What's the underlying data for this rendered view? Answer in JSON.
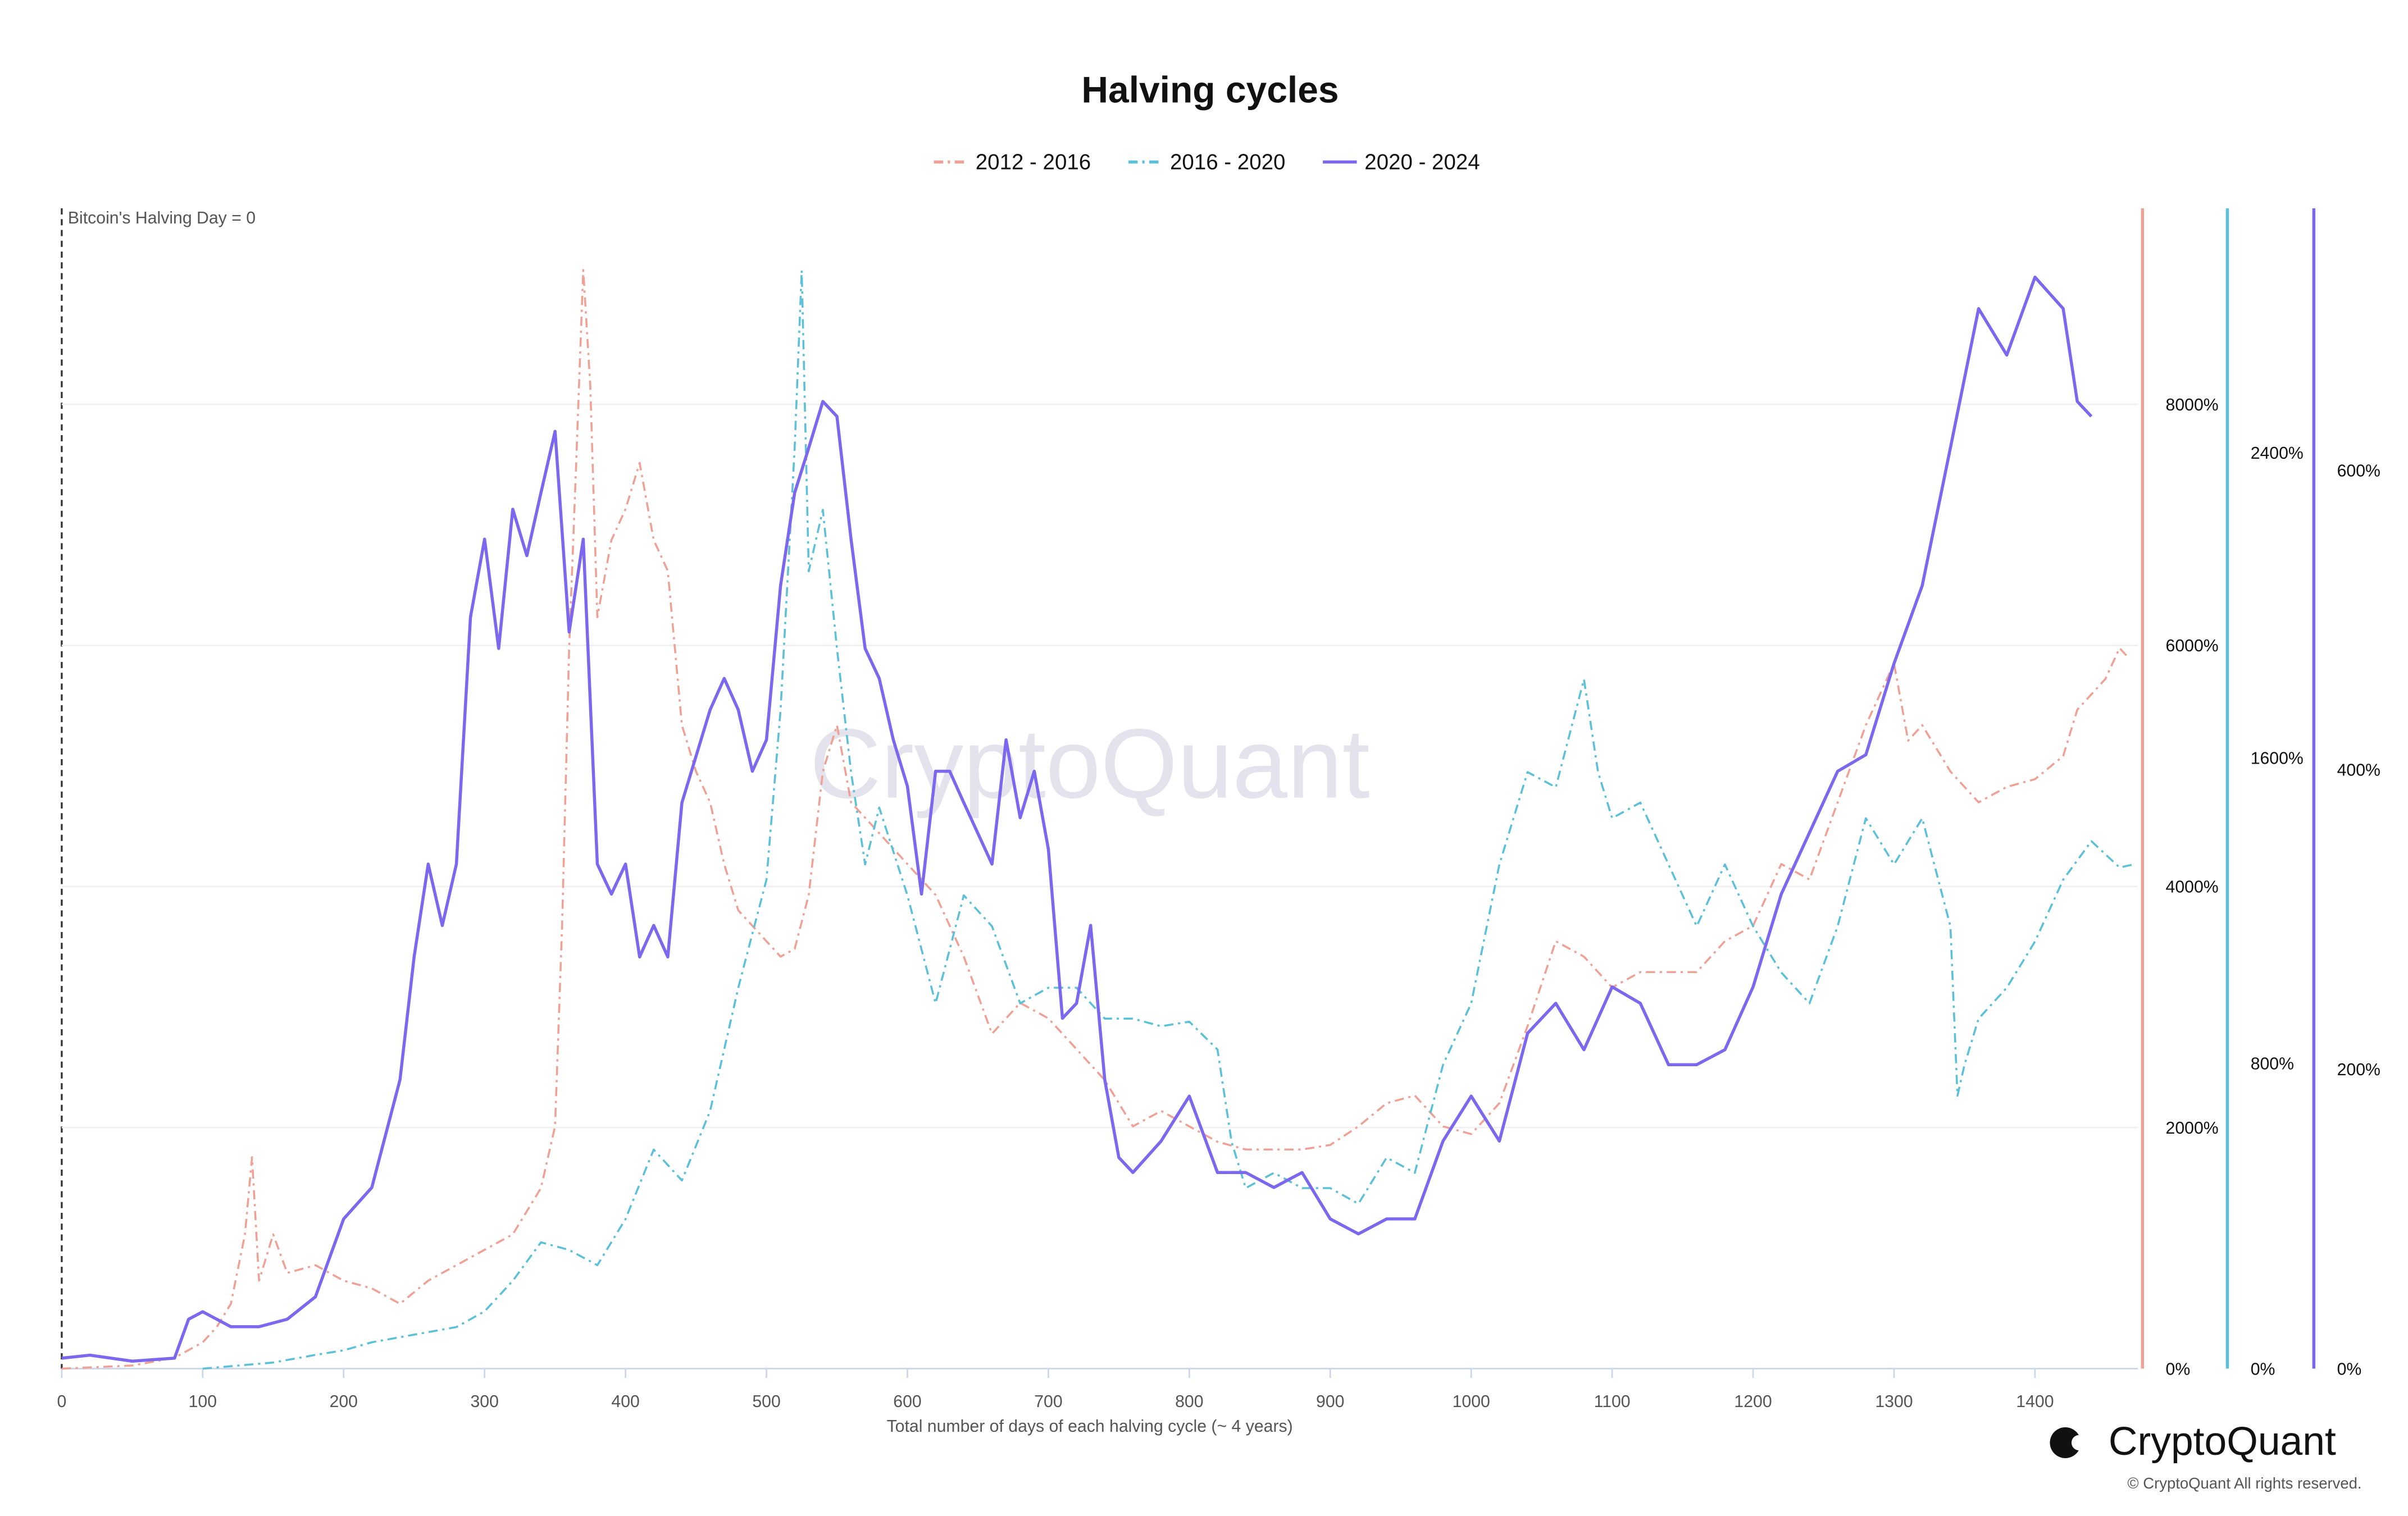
{
  "chart_data": {
    "type": "line",
    "title": "Halving cycles",
    "annotation": "Bitcoin's Halving Day = 0",
    "x_label": "Total number of days of each halving cycle (~ 4 years)",
    "watermark": "CryptoQuant",
    "logo": "CryptoQuant",
    "copyright": "© CryptoQuant All rights reserved.",
    "xlim": [
      0,
      1473
    ],
    "xticks": [
      0,
      100,
      200,
      300,
      400,
      500,
      600,
      700,
      800,
      900,
      1000,
      1100,
      1200,
      1300,
      1400
    ],
    "ylim": [
      0,
      9626
    ],
    "yticks": [
      {
        "value": 0,
        "label": "0%"
      },
      {
        "value": 2000,
        "label": "2000%"
      },
      {
        "value": 4000,
        "label": "4000%"
      },
      {
        "value": 6000,
        "label": "6000%"
      },
      {
        "value": 8000,
        "label": "8000%"
      }
    ],
    "y2lim": [
      0,
      3040
    ],
    "y2ticks": [
      {
        "value": 0,
        "label": "0%"
      },
      {
        "value": 800,
        "label": "800%"
      },
      {
        "value": 1600,
        "label": "1600%"
      },
      {
        "value": 2400,
        "label": "2400%"
      }
    ],
    "y3lim": [
      0,
      775
    ],
    "y3ticks": [
      {
        "value": 0,
        "label": "0%"
      },
      {
        "value": 200,
        "label": "200%"
      },
      {
        "value": 400,
        "label": "400%"
      },
      {
        "value": 600,
        "label": "600%"
      }
    ],
    "grid": true,
    "legend": "top",
    "series": [
      {
        "name": "2012 - 2016",
        "color": "#f0a195",
        "dash": "dashdot",
        "axis": "y",
        "x": [
          0,
          50,
          80,
          100,
          110,
          120,
          130,
          135,
          140,
          150,
          160,
          180,
          200,
          220,
          240,
          260,
          280,
          300,
          320,
          340,
          350,
          355,
          360,
          365,
          370,
          375,
          380,
          390,
          400,
          410,
          420,
          430,
          440,
          450,
          460,
          470,
          480,
          490,
          500,
          510,
          520,
          530,
          540,
          550,
          560,
          580,
          600,
          620,
          640,
          660,
          680,
          700,
          720,
          740,
          760,
          780,
          800,
          820,
          840,
          860,
          880,
          900,
          920,
          940,
          960,
          980,
          1000,
          1020,
          1040,
          1060,
          1080,
          1100,
          1120,
          1140,
          1160,
          1180,
          1200,
          1220,
          1240,
          1260,
          1280,
          1300,
          1310,
          1320,
          1340,
          1360,
          1380,
          1400,
          1420,
          1430,
          1440,
          1450,
          1460,
          1465
        ],
        "values": [
          0,
          26,
          90,
          218,
          346,
          538,
          1114,
          1754,
          730,
          1114,
          794,
          858,
          730,
          666,
          538,
          730,
          858,
          986,
          1114,
          1498,
          2010,
          3674,
          5978,
          7514,
          9114,
          8154,
          6234,
          6874,
          7130,
          7514,
          6874,
          6618,
          5338,
          4954,
          4698,
          4186,
          3802,
          3674,
          3546,
          3418,
          3482,
          3930,
          4954,
          5338,
          4698,
          4442,
          4186,
          3930,
          3418,
          2778,
          3034,
          2906,
          2650,
          2394,
          2010,
          2138,
          2010,
          1882,
          1818,
          1818,
          1818,
          1856,
          2010,
          2202,
          2266,
          2010,
          1946,
          2202,
          2842,
          3546,
          3418,
          3162,
          3290,
          3290,
          3290,
          3546,
          3674,
          4186,
          4058,
          4698,
          5338,
          5850,
          5210,
          5338,
          4954,
          4698,
          4826,
          4890,
          5082,
          5466,
          5594,
          5722,
          5978,
          5914
        ]
      },
      {
        "name": "2016 - 2020",
        "color": "#5bc0d8",
        "dash": "dashdot",
        "axis": "y2",
        "x": [
          100,
          150,
          180,
          200,
          220,
          250,
          280,
          300,
          320,
          340,
          360,
          380,
          400,
          420,
          440,
          460,
          480,
          500,
          510,
          520,
          525,
          530,
          540,
          550,
          560,
          570,
          580,
          600,
          620,
          640,
          660,
          680,
          700,
          720,
          740,
          760,
          780,
          800,
          820,
          830,
          840,
          860,
          880,
          900,
          920,
          940,
          960,
          980,
          1000,
          1020,
          1040,
          1060,
          1080,
          1090,
          1100,
          1120,
          1140,
          1160,
          1180,
          1200,
          1220,
          1240,
          1260,
          1280,
          1300,
          1320,
          1340,
          1345,
          1350,
          1360,
          1380,
          1400,
          1420,
          1440,
          1460,
          1470
        ],
        "values": [
          0,
          16,
          36,
          48,
          69,
          89,
          109,
          150,
          230,
          331,
          311,
          271,
          392,
          574,
          493,
          675,
          998,
          1281,
          1725,
          2412,
          2877,
          2089,
          2250,
          1887,
          1563,
          1321,
          1470,
          1240,
          957,
          1240,
          1159,
          957,
          998,
          998,
          917,
          917,
          897,
          909,
          836,
          594,
          473,
          513,
          473,
          473,
          432,
          553,
          513,
          796,
          957,
          1321,
          1563,
          1523,
          1806,
          1563,
          1442,
          1483,
          1321,
          1159,
          1321,
          1159,
          1038,
          957,
          1159,
          1442,
          1321,
          1442,
          1159,
          715,
          796,
          917,
          998,
          1119,
          1281,
          1382,
          1313,
          1321
        ]
      },
      {
        "name": "2020 - 2024",
        "color": "#7b68ee",
        "dash": "solid",
        "axis": "y3",
        "x": [
          0,
          20,
          50,
          80,
          90,
          100,
          110,
          120,
          140,
          160,
          180,
          200,
          220,
          240,
          250,
          260,
          270,
          280,
          290,
          300,
          310,
          320,
          330,
          340,
          350,
          360,
          370,
          380,
          390,
          400,
          410,
          420,
          430,
          440,
          460,
          470,
          480,
          490,
          500,
          510,
          520,
          530,
          540,
          550,
          560,
          570,
          580,
          590,
          600,
          610,
          620,
          630,
          640,
          660,
          670,
          680,
          690,
          700,
          710,
          720,
          730,
          740,
          750,
          760,
          780,
          800,
          820,
          840,
          860,
          880,
          900,
          920,
          940,
          960,
          980,
          1000,
          1020,
          1040,
          1060,
          1080,
          1100,
          1120,
          1140,
          1160,
          1180,
          1200,
          1220,
          1240,
          1260,
          1280,
          1300,
          1320,
          1340,
          1360,
          1380,
          1400,
          1420,
          1430,
          1440
        ],
        "values": [
          7,
          9,
          5,
          7,
          33,
          38,
          33,
          28,
          28,
          33,
          48,
          100,
          121,
          193,
          275,
          337,
          296,
          337,
          502,
          554,
          481,
          574,
          543,
          585,
          626,
          492,
          554,
          337,
          317,
          337,
          275,
          296,
          275,
          378,
          440,
          461,
          440,
          399,
          420,
          523,
          585,
          615,
          646,
          636,
          554,
          481,
          461,
          420,
          389,
          317,
          399,
          399,
          378,
          337,
          420,
          368,
          399,
          347,
          234,
          244,
          296,
          193,
          141,
          131,
          152,
          182,
          131,
          131,
          121,
          131,
          100,
          90,
          100,
          100,
          152,
          182,
          152,
          224,
          244,
          213,
          255,
          244,
          203,
          203,
          213,
          255,
          317,
          358,
          399,
          410,
          471,
          523,
          615,
          708,
          677,
          729,
          708,
          646,
          636
        ]
      }
    ]
  }
}
